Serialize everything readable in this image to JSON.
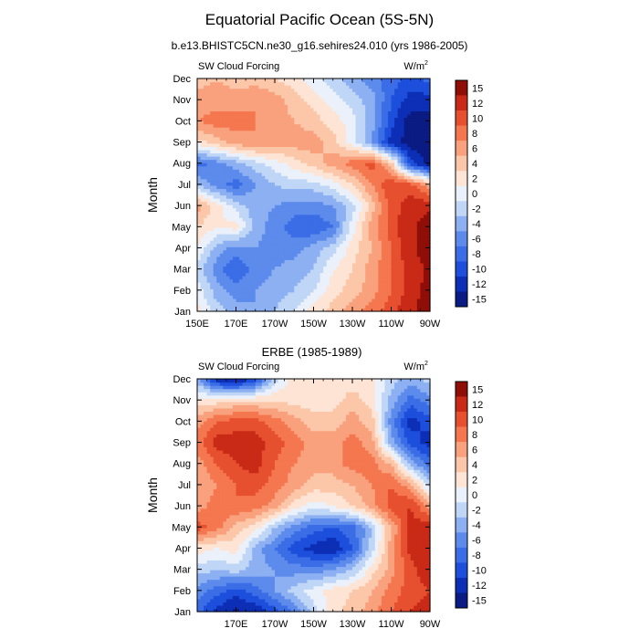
{
  "figure": {
    "title": "Equatorial Pacific Ocean (5S-5N)",
    "subtitle": "b.e13.BHISTC5CN.ne30_g16.sehires24.010 (yrs 1986-2005)"
  },
  "chart_data": [
    {
      "type": "heatmap",
      "title": "",
      "left_label": "SW Cloud Forcing",
      "right_label": "W/m",
      "right_label_sup": "2",
      "ylabel": "Month",
      "xlabel": "",
      "x_ticks": [
        "150E",
        "170E",
        "170W",
        "150W",
        "130W",
        "110W",
        "90W"
      ],
      "x_lim": [
        150,
        270
      ],
      "y_ticks": [
        "Jan",
        "Feb",
        "Mar",
        "Apr",
        "May",
        "Jun",
        "Jul",
        "Aug",
        "Sep",
        "Oct",
        "Nov",
        "Dec"
      ],
      "levels": [
        -15,
        -12,
        -10,
        -8,
        -6,
        -4,
        -2,
        0,
        2,
        4,
        6,
        8,
        10,
        12,
        15
      ],
      "colorbar_labels": [
        "15",
        "12",
        "10",
        "8",
        "6",
        "4",
        "2",
        "0",
        "-2",
        "-4",
        "-6",
        "-8",
        "-10",
        "-12",
        "-15"
      ],
      "x": [
        150,
        160,
        170,
        180,
        190,
        200,
        210,
        220,
        230,
        240,
        250,
        260,
        270
      ],
      "values": [
        [
          2,
          -2,
          -4,
          -5,
          -3,
          -1,
          2,
          4,
          6,
          8,
          10,
          13,
          15
        ],
        [
          0,
          -4,
          -6,
          -5,
          -4,
          -3,
          -1,
          2,
          4,
          6,
          9,
          12,
          15
        ],
        [
          -2,
          -6,
          -9,
          -6,
          -5,
          -4,
          -3,
          1,
          3,
          6,
          9,
          12,
          14
        ],
        [
          1,
          -4,
          -6,
          -5,
          -6,
          -6,
          -4,
          -2,
          2,
          5,
          9,
          13,
          15
        ],
        [
          3,
          1,
          2,
          -4,
          -6,
          -8,
          -9,
          -7,
          0,
          6,
          10,
          13,
          15
        ],
        [
          6,
          2,
          -2,
          -4,
          -5,
          -6,
          -6,
          -5,
          -2,
          4,
          10,
          12,
          13
        ],
        [
          -3,
          -6,
          -8,
          -5,
          -3,
          -2,
          -2,
          0,
          3,
          7,
          11,
          10,
          5
        ],
        [
          -8,
          -6,
          -4,
          -2,
          0,
          2,
          4,
          6,
          8,
          10,
          4,
          -10,
          -15
        ],
        [
          2,
          4,
          6,
          7,
          6,
          6,
          6,
          4,
          0,
          -5,
          -12,
          -15,
          -15
        ],
        [
          7,
          8,
          8,
          7,
          6,
          5,
          4,
          2,
          0,
          -4,
          -10,
          -15,
          -15
        ],
        [
          6,
          6,
          6,
          7,
          6,
          4,
          2,
          0,
          -2,
          -4,
          -9,
          -12,
          -12
        ],
        [
          4,
          5,
          4,
          4,
          3,
          2,
          0,
          -2,
          -4,
          -6,
          -8,
          -10,
          -8
        ]
      ]
    },
    {
      "type": "heatmap",
      "title": "ERBE (1985-1989)",
      "left_label": "SW Cloud Forcing",
      "right_label": "W/m",
      "right_label_sup": "2",
      "ylabel": "Month",
      "xlabel": "",
      "x_ticks": [
        "170E",
        "170W",
        "150W",
        "130W",
        "110W",
        "90W"
      ],
      "x_lim": [
        150,
        270
      ],
      "y_ticks": [
        "Jan",
        "Feb",
        "Mar",
        "Apr",
        "May",
        "Jun",
        "Jul",
        "Aug",
        "Sep",
        "Oct",
        "Nov",
        "Dec"
      ],
      "levels": [
        -15,
        -12,
        -10,
        -8,
        -6,
        -4,
        -2,
        0,
        2,
        4,
        6,
        8,
        10,
        12,
        15
      ],
      "colorbar_labels": [
        "15",
        "12",
        "10",
        "8",
        "6",
        "4",
        "2",
        "0",
        "-2",
        "-4",
        "-6",
        "-8",
        "-10",
        "-12",
        "-15"
      ],
      "x": [
        150,
        160,
        170,
        180,
        190,
        200,
        210,
        220,
        230,
        240,
        250,
        260,
        270
      ],
      "values": [
        [
          -8,
          -12,
          -14,
          -13,
          -10,
          -7,
          -2,
          2,
          4,
          6,
          9,
          11,
          12
        ],
        [
          -6,
          -8,
          -10,
          -8,
          -5,
          -2,
          0,
          2,
          3,
          5,
          8,
          10,
          11
        ],
        [
          -2,
          -3,
          -2,
          -4,
          -5,
          -6,
          -6,
          -5,
          -3,
          2,
          6,
          10,
          13
        ],
        [
          2,
          1,
          2,
          -4,
          -7,
          -10,
          -12,
          -13,
          -9,
          -2,
          6,
          12,
          13
        ],
        [
          10,
          8,
          4,
          2,
          -3,
          -6,
          -8,
          -9,
          -8,
          -3,
          5,
          12,
          13
        ],
        [
          6,
          8,
          9,
          8,
          6,
          2,
          0,
          1,
          3,
          6,
          10,
          11,
          6
        ],
        [
          5,
          7,
          9,
          10,
          8,
          6,
          4,
          4,
          5,
          7,
          9,
          6,
          -2
        ],
        [
          6,
          9,
          11,
          12,
          9,
          7,
          6,
          6,
          8,
          8,
          5,
          -4,
          -8
        ],
        [
          8,
          12,
          12,
          12,
          10,
          8,
          6,
          6,
          8,
          6,
          -4,
          -10,
          -12
        ],
        [
          6,
          9,
          10,
          10,
          8,
          6,
          4,
          4,
          6,
          4,
          -6,
          -12,
          -10
        ],
        [
          2,
          2,
          3,
          3,
          3,
          2,
          2,
          2,
          4,
          2,
          -4,
          -8,
          -6
        ],
        [
          -4,
          -12,
          -14,
          -10,
          -2,
          2,
          2,
          2,
          2,
          2,
          -2,
          -4,
          -2
        ]
      ]
    }
  ],
  "colors": {
    "scale": [
      "#0a1b83",
      "#0c2fb6",
      "#1d4fdc",
      "#3a6de6",
      "#5c8bec",
      "#8cb0f2",
      "#c0d6f7",
      "#eaf1fb",
      "#fde4d4",
      "#fcc6a9",
      "#f9a07c",
      "#f4774f",
      "#e6502f",
      "#c82a17",
      "#8f0e07"
    ]
  }
}
